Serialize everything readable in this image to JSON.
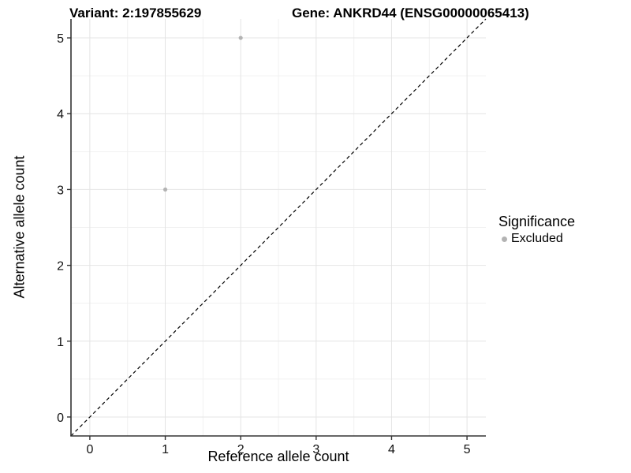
{
  "chart_data": {
    "type": "scatter",
    "title_left": "Variant: 2:197855629",
    "title_right": "Gene: ANKRD44 (ENSG00000065413)",
    "xlabel": "Reference allele count",
    "ylabel": "Alternative allele count",
    "xlim": [
      -0.25,
      5.25
    ],
    "ylim": [
      -0.25,
      5.25
    ],
    "xticks": [
      0,
      1,
      2,
      3,
      4,
      5
    ],
    "yticks": [
      0,
      1,
      2,
      3,
      4,
      5
    ],
    "minor_gridlines_x": [
      0.5,
      1.5,
      2.5,
      3.5,
      4.5
    ],
    "minor_gridlines_y": [
      0.5,
      1.5,
      2.5,
      3.5,
      4.5
    ],
    "grid": true,
    "series": [
      {
        "name": "Excluded",
        "color": "#b3b3b3",
        "points": [
          {
            "x": 1,
            "y": 3
          },
          {
            "x": 2,
            "y": 5
          }
        ]
      }
    ],
    "identity_line": {
      "style": "dashed",
      "color": "#000000",
      "from": -0.25,
      "to": 5.25
    },
    "legend": {
      "title": "Significance",
      "position": "right",
      "items": [
        {
          "label": "Excluded",
          "color": "#b3b3b3"
        }
      ]
    },
    "colors": {
      "background": "#ffffff",
      "major_grid": "#e4e4e4",
      "minor_grid": "#f1f1f1",
      "axis_line": "#333333",
      "tick_label": "#111111"
    }
  }
}
